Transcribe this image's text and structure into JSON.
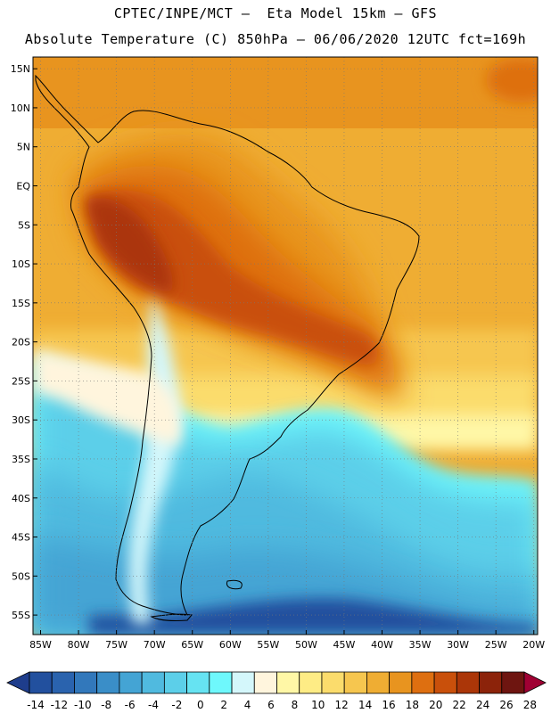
{
  "header": {
    "line1": "CPTEC/INPE/MCT –  Eta Model 15km – GFS",
    "line2": "Absolute Temperature (C) 850hPa – 06/06/2020 12UTC fct=169h"
  },
  "axes": {
    "lat_labels": [
      "15N",
      "10N",
      "5N",
      "EQ",
      "5S",
      "10S",
      "15S",
      "20S",
      "25S",
      "30S",
      "35S",
      "40S",
      "45S",
      "50S",
      "55S"
    ],
    "lat_values": [
      15,
      10,
      5,
      0,
      -5,
      -10,
      -15,
      -20,
      -25,
      -30,
      -35,
      -40,
      -45,
      -50,
      -55
    ],
    "lon_labels": [
      "85W",
      "80W",
      "75W",
      "70W",
      "65W",
      "60W",
      "55W",
      "50W",
      "45W",
      "40W",
      "35W",
      "30W",
      "25W",
      "20W"
    ],
    "lon_values": [
      -85,
      -80,
      -75,
      -70,
      -65,
      -60,
      -55,
      -50,
      -45,
      -40,
      -35,
      -30,
      -25,
      -20
    ],
    "lat_range": [
      -57.5,
      16.5
    ],
    "lon_range": [
      -86,
      -19.5
    ]
  },
  "colorbar": {
    "labels": [
      "-14",
      "-12",
      "-10",
      "-8",
      "-6",
      "-4",
      "-2",
      "0",
      "2",
      "4",
      "6",
      "8",
      "10",
      "12",
      "14",
      "16",
      "18",
      "20",
      "22",
      "24",
      "26",
      "28"
    ],
    "colors": [
      "#1e3d8c",
      "#22509e",
      "#2a63ae",
      "#3278bb",
      "#3a8ec8",
      "#44a4d4",
      "#50badf",
      "#5ccfe9",
      "#66e3f2",
      "#6ef8fc",
      "#d4f7fb",
      "#fff5dd",
      "#fff7a6",
      "#feec85",
      "#fbdc6c",
      "#f6c64f",
      "#efad33",
      "#e8941f",
      "#de6f10",
      "#c9500b",
      "#ab3608",
      "#8c230a",
      "#6e1510",
      "#a00033"
    ]
  }
}
